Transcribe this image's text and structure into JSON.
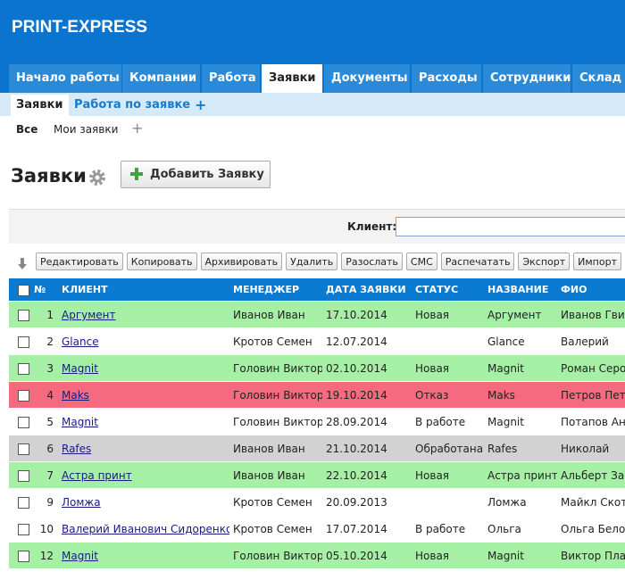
{
  "header": {
    "title": "PRINT-EXPRESS",
    "tabs": [
      "Начало работы",
      "Компании",
      "Работа",
      "Заявки",
      "Документы",
      "Расходы",
      "Сотрудники",
      "Склад"
    ],
    "active_tab": 3
  },
  "subtabs": {
    "items": [
      "Заявки",
      "Работа по заявке"
    ],
    "add": "+"
  },
  "filters": {
    "items": [
      "Все",
      "Мои заявки"
    ],
    "add": "+"
  },
  "page": {
    "heading": "Заявки",
    "add_button": "Добавить Заявку",
    "client_label": "Клиент:"
  },
  "toolbar": [
    "Редактировать",
    "Копировать",
    "Архивировать",
    "Удалить",
    "Разослать",
    "СМС",
    "Распечатать",
    "Экспорт",
    "Импорт"
  ],
  "table": {
    "columns": [
      "№",
      "КЛИЕНТ",
      "МЕНЕДЖЕР",
      "ДАТА ЗАЯВКИ",
      "СТАТУС",
      "НАЗВАНИЕ",
      "ФИО"
    ],
    "rows": [
      {
        "color": "#a6f0a6",
        "cells": [
          1,
          "Аргумент",
          "Иванов Иван",
          "17.10.2014",
          "Новая",
          "Аргумент",
          "Иванов Гвид"
        ]
      },
      {
        "color": "#ffffff",
        "cells": [
          2,
          "Glance",
          "Кротов Семен",
          "12.07.2014",
          null,
          "Glance",
          "Валерий"
        ]
      },
      {
        "color": "#a6f0a6",
        "cells": [
          3,
          "Magnit",
          "Головин Виктор",
          "02.10.2014",
          "Новая",
          "Magnit",
          "Роман Серо"
        ]
      },
      {
        "color": "#f66a80",
        "cells": [
          4,
          "Maks",
          "Головин Виктор",
          "19.10.2014",
          "Отказ",
          "Maks",
          "Петров Петр"
        ]
      },
      {
        "color": "#ffffff",
        "cells": [
          5,
          "Magnit",
          "Головин Виктор",
          "28.09.2014",
          "В работе",
          "Magnit",
          "Потапов Анд"
        ]
      },
      {
        "color": "#d2d2d2",
        "cells": [
          6,
          "Rafes",
          "Иванов Иван",
          "21.10.2014",
          "Обработана",
          "Rafes",
          "Николай"
        ]
      },
      {
        "color": "#a6f0a6",
        "cells": [
          7,
          "Астра принт",
          "Иванов Иван",
          "22.10.2014",
          "Новая",
          "Астра принт",
          "Альберт Зан"
        ]
      },
      {
        "color": "#ffffff",
        "cells": [
          9,
          "Ломжа",
          "Кротов Семен",
          "20.09.2013",
          null,
          "Ломжа",
          "Майкл Скот"
        ]
      },
      {
        "color": "#ffffff",
        "cells": [
          10,
          "Валерий Иванович Сидоренко",
          "Кротов Семен",
          "17.07.2014",
          "В работе",
          "Ольга",
          "Ольга Белов"
        ]
      },
      {
        "color": "#a6f0a6",
        "cells": [
          12,
          "Magnit",
          "Головин Виктор",
          "05.10.2014",
          "Новая",
          "Magnit",
          "Виктор Плав"
        ]
      }
    ]
  }
}
